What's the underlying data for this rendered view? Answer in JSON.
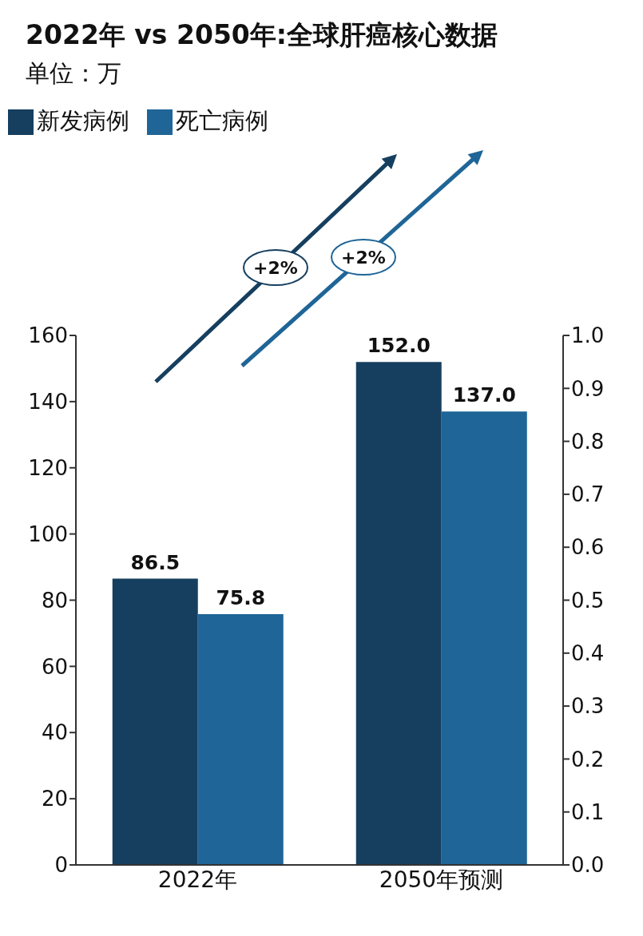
{
  "chart_data": {
    "type": "bar",
    "title": "2022年 vs 2050年:全球肝癌核心数据",
    "subtitle": "单位：万",
    "categories": [
      "2022年",
      "2050年预测"
    ],
    "series": [
      {
        "name": "新发病例",
        "color": "#163f5f",
        "values": [
          86.5,
          152.0
        ]
      },
      {
        "name": "死亡病例",
        "color": "#1f6597",
        "values": [
          75.8,
          137.0
        ]
      }
    ],
    "ylim": [
      0,
      160
    ],
    "yticks": [
      0,
      20,
      40,
      60,
      80,
      100,
      120,
      140,
      160
    ],
    "y2lim": [
      0,
      1
    ],
    "y2ticks": [
      {
        "value": 0,
        "label": "0.0"
      },
      {
        "value": 0.1,
        "label": "0.1"
      },
      {
        "value": 0.2,
        "label": "0.2"
      },
      {
        "value": 0.3,
        "label": "0.3"
      },
      {
        "value": 0.4,
        "label": "0.4"
      },
      {
        "value": 0.5,
        "label": "0.5"
      },
      {
        "value": 0.6,
        "label": "0.6"
      },
      {
        "value": 0.7,
        "label": "0.7"
      },
      {
        "value": 0.8,
        "label": "0.8"
      },
      {
        "value": 0.9,
        "label": "0.9"
      },
      {
        "value": 1,
        "label": "1.0"
      }
    ],
    "value_labels": [
      [
        "86.5",
        "152.0"
      ],
      [
        "75.8",
        "137.0"
      ]
    ],
    "annotations": [
      "+2%",
      "+2%"
    ],
    "legend": "top left",
    "grid": false
  }
}
